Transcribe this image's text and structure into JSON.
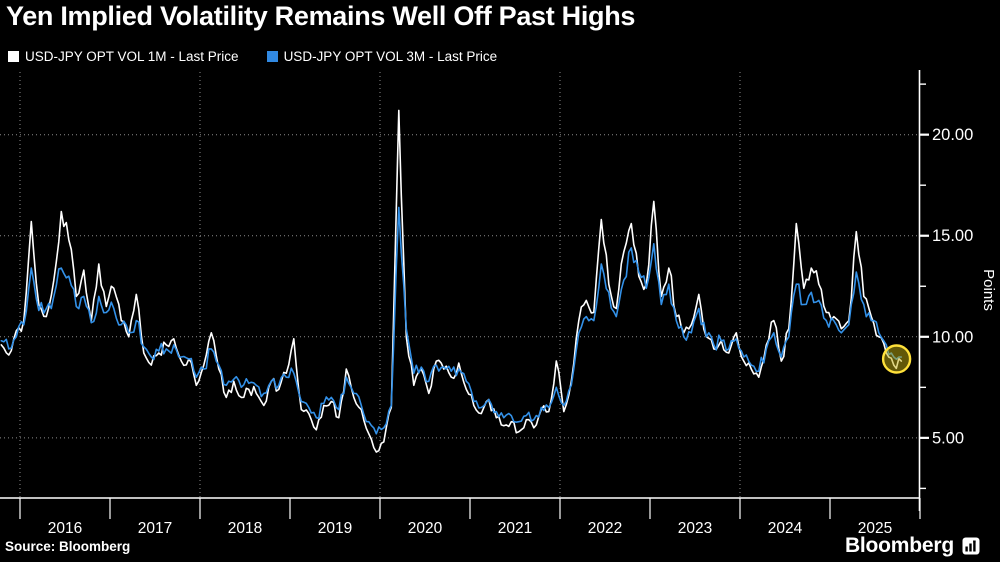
{
  "title": "Yen Implied Volatility Remains Well Off Past Highs",
  "legend": [
    {
      "label": "USD-JPY OPT VOL 1M - Last Price",
      "color": "#ffffff"
    },
    {
      "label": "USD-JPY OPT VOL 3M - Last Price",
      "color": "#3189e2"
    }
  ],
  "footer": {
    "source": "Source: Bloomberg",
    "brand": "Bloomberg"
  },
  "chart_data": {
    "type": "line",
    "title": "Yen Implied Volatility Remains Well Off Past Highs",
    "x_unit": "decimal_year",
    "x_start": 2015.7917,
    "x_step": 0.0833333,
    "xlim": [
      2015.778,
      2026.0
    ],
    "ylim": [
      2.05,
      23.1
    ],
    "grid": true,
    "legend_position": "top-left",
    "y_axis": {
      "title": "Points",
      "side": "right",
      "ticks": [
        {
          "v": 5,
          "label": "5.00"
        },
        {
          "v": 10,
          "label": "10.00"
        },
        {
          "v": 15,
          "label": "15.00"
        },
        {
          "v": 20,
          "label": "20.00"
        }
      ],
      "minor_ticks": [
        2.5,
        7.5,
        12.5,
        17.5,
        22.5
      ]
    },
    "x_axis": {
      "year_labels": [
        "2016",
        "2017",
        "2018",
        "2019",
        "2020",
        "2021",
        "2022",
        "2023",
        "2024",
        "2025"
      ],
      "first_label_year": 2016,
      "grid_years": [
        2016,
        2018,
        2020,
        2022,
        2024
      ]
    },
    "series": [
      {
        "name": "USD-JPY OPT VOL 1M - Last Price",
        "color": "#ffffff",
        "values": [
          9.6,
          9.1,
          10.3,
          10.8,
          15.7,
          11.6,
          11.0,
          12.8,
          16.2,
          14.8,
          12.0,
          13.3,
          10.8,
          13.6,
          11.5,
          12.4,
          10.8,
          10.0,
          12.1,
          9.2,
          8.6,
          9.2,
          9.6,
          9.9,
          8.8,
          8.9,
          7.6,
          8.6,
          10.2,
          8.4,
          7.0,
          7.8,
          7.0,
          7.4,
          7.2,
          6.6,
          7.8,
          7.4,
          8.2,
          9.9,
          6.4,
          6.2,
          5.4,
          6.6,
          6.8,
          6.0,
          8.4,
          7.0,
          6.4,
          5.2,
          4.3,
          4.8,
          6.5,
          21.2,
          10.0,
          7.6,
          8.4,
          7.2,
          8.8,
          8.4,
          8.0,
          8.7,
          7.4,
          6.6,
          6.2,
          6.9,
          6.0,
          5.6,
          5.8,
          5.3,
          5.9,
          5.5,
          6.4,
          6.3,
          8.8,
          6.3,
          7.8,
          10.8,
          11.8,
          11.2,
          15.8,
          12.6,
          11.4,
          14.2,
          15.6,
          13.0,
          12.6,
          16.7,
          12.0,
          13.4,
          11.0,
          10.2,
          10.6,
          12.1,
          10.0,
          9.4,
          9.8,
          9.2,
          10.2,
          8.8,
          8.4,
          8.0,
          9.6,
          10.8,
          8.8,
          10.4,
          15.6,
          12.4,
          13.4,
          12.6,
          11.2,
          11.0,
          10.4,
          10.8,
          15.2,
          12.0,
          11.0,
          10.0,
          9.2,
          8.6,
          8.8
        ]
      },
      {
        "name": "USD-JPY OPT VOL 3M - Last Price",
        "color": "#3391e8",
        "values": [
          9.8,
          9.4,
          10.0,
          10.6,
          13.4,
          11.3,
          11.4,
          12.0,
          13.4,
          13.0,
          11.5,
          12.0,
          10.7,
          12.0,
          11.2,
          11.4,
          10.6,
          10.2,
          10.8,
          9.5,
          9.0,
          9.3,
          9.4,
          9.6,
          9.0,
          8.9,
          8.0,
          8.4,
          9.4,
          8.6,
          7.6,
          7.9,
          7.5,
          7.7,
          7.6,
          7.2,
          7.8,
          7.6,
          8.0,
          8.2,
          6.8,
          6.5,
          6.0,
          6.7,
          7.0,
          6.4,
          8.0,
          7.2,
          6.6,
          5.8,
          5.2,
          5.5,
          6.6,
          16.4,
          10.4,
          8.2,
          8.5,
          7.8,
          8.6,
          8.5,
          8.3,
          8.4,
          7.8,
          6.8,
          6.5,
          6.9,
          6.3,
          6.0,
          6.1,
          5.8,
          6.1,
          5.9,
          6.5,
          6.5,
          7.5,
          6.6,
          7.6,
          10.2,
          11.0,
          10.8,
          13.6,
          12.2,
          11.0,
          12.8,
          14.4,
          13.2,
          12.4,
          14.6,
          11.6,
          12.6,
          10.8,
          10.0,
          10.2,
          11.4,
          10.0,
          9.6,
          9.8,
          9.4,
          9.9,
          9.0,
          8.6,
          8.3,
          9.4,
          10.2,
          9.0,
          10.0,
          12.6,
          11.6,
          12.2,
          11.8,
          10.8,
          10.8,
          10.2,
          10.6,
          13.2,
          11.6,
          10.8,
          10.2,
          9.6,
          9.0,
          9.0
        ]
      }
    ],
    "annotation": {
      "type": "highlight-circle",
      "x": 2025.74,
      "value": 8.9,
      "radius_px": 13.5,
      "fill_color": "rgba(196,176,16,0.5)",
      "edge_color": "#ffe13a"
    }
  }
}
